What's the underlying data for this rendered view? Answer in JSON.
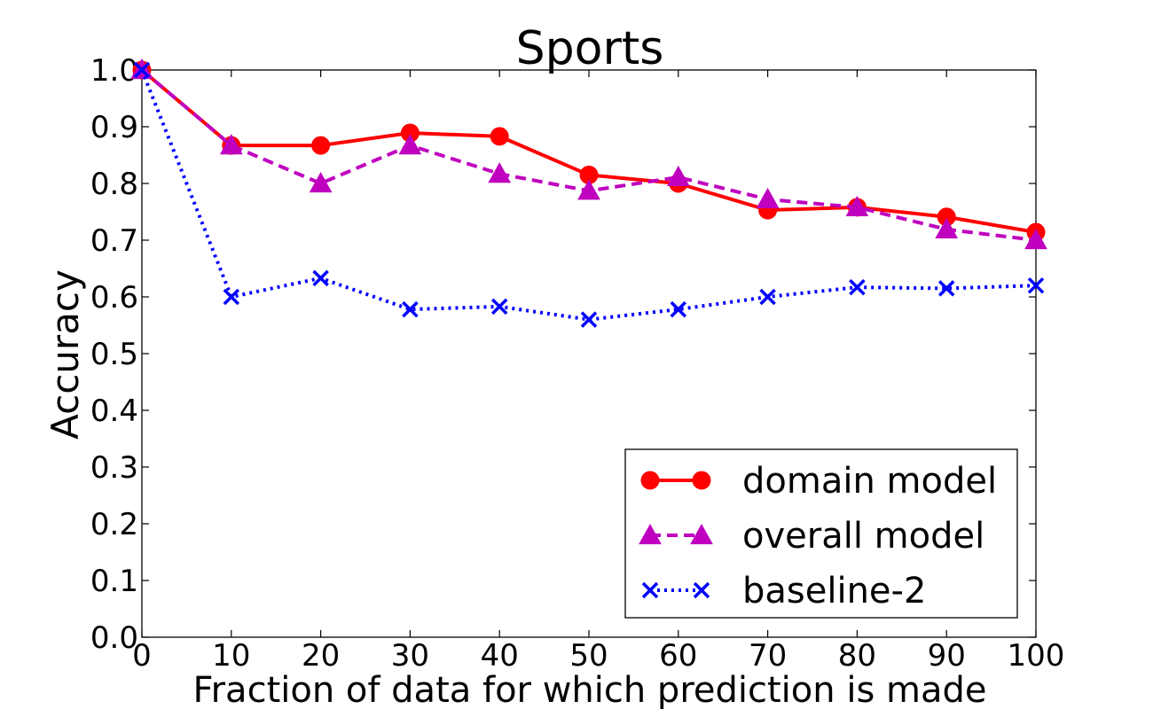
{
  "chart_data": {
    "type": "line",
    "title": "Sports",
    "xlabel": "Fraction of data for which prediction is made",
    "ylabel": "Accuracy",
    "xlim": [
      0,
      100
    ],
    "ylim": [
      0.0,
      1.0
    ],
    "xticks": [
      0,
      10,
      20,
      30,
      40,
      50,
      60,
      70,
      80,
      90,
      100
    ],
    "yticks": [
      0.0,
      0.1,
      0.2,
      0.3,
      0.4,
      0.5,
      0.6,
      0.7,
      0.8,
      0.9,
      1.0
    ],
    "xtick_labels": [
      "0",
      "10",
      "20",
      "30",
      "40",
      "50",
      "60",
      "70",
      "80",
      "90",
      "100"
    ],
    "ytick_labels": [
      "0.0",
      "0.1",
      "0.2",
      "0.3",
      "0.4",
      "0.5",
      "0.6",
      "0.7",
      "0.8",
      "0.9",
      "1.0"
    ],
    "grid": false,
    "legend_position": "lower-right",
    "x": [
      0,
      10,
      20,
      30,
      40,
      50,
      60,
      70,
      80,
      90,
      100
    ],
    "series": [
      {
        "name": "domain model",
        "color": "#ff0000",
        "marker": "circle",
        "linestyle": "solid",
        "values": [
          1.0,
          0.867,
          0.867,
          0.889,
          0.883,
          0.815,
          0.8,
          0.753,
          0.758,
          0.741,
          0.714
        ]
      },
      {
        "name": "overall model",
        "color": "#bf00bf",
        "marker": "triangle",
        "linestyle": "dashed",
        "values": [
          1.0,
          0.867,
          0.8,
          0.867,
          0.817,
          0.787,
          0.811,
          0.772,
          0.758,
          0.719,
          0.7
        ]
      },
      {
        "name": "baseline-2",
        "color": "#0000ff",
        "marker": "x",
        "linestyle": "dashdot",
        "values": [
          1.0,
          0.6,
          0.633,
          0.578,
          0.583,
          0.56,
          0.578,
          0.6,
          0.617,
          0.615,
          0.62
        ]
      }
    ]
  }
}
